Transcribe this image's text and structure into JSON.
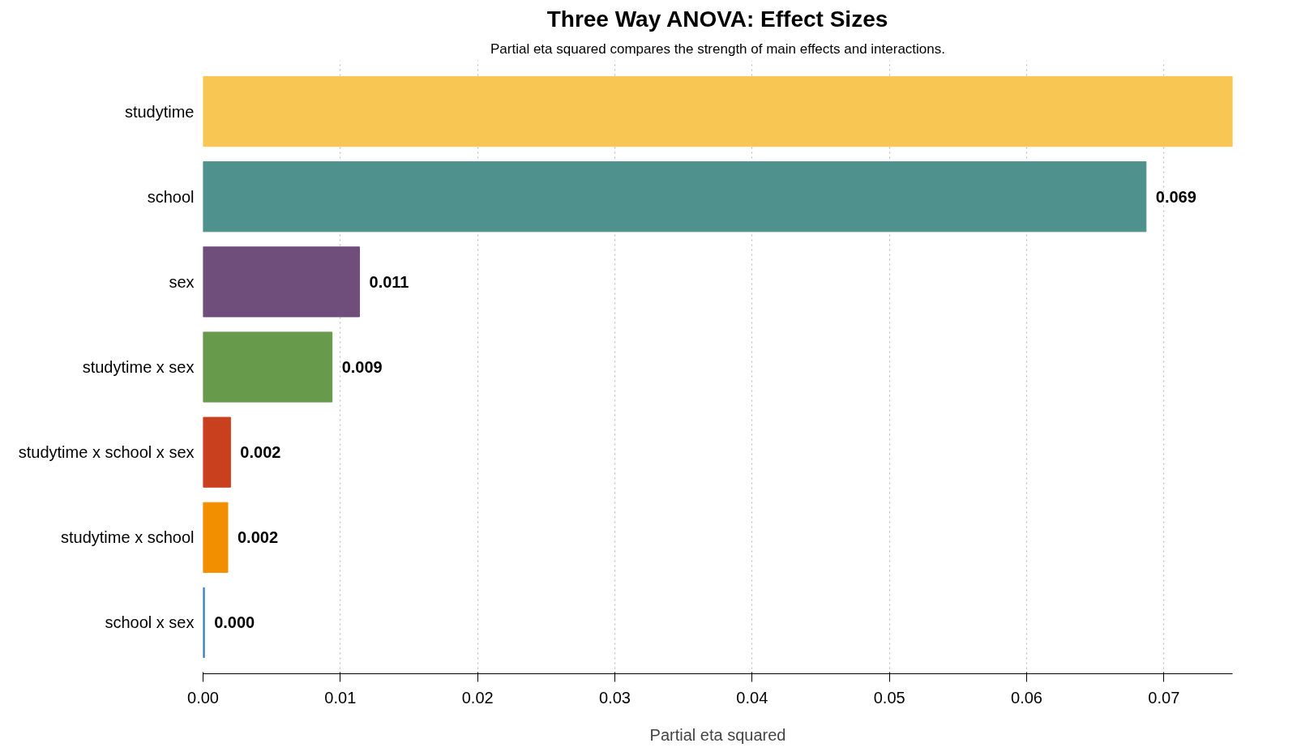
{
  "chart_data": {
    "type": "bar",
    "orientation": "horizontal",
    "title": "Three Way ANOVA: Effect Sizes",
    "subtitle": "Partial eta squared compares the strength of main effects and interactions.",
    "xlabel": "Partial eta squared",
    "categories": [
      "studytime",
      "school",
      "sex",
      "studytime x sex",
      "studytime x school x sex",
      "studytime x school",
      "school x sex"
    ],
    "values": [
      0.075,
      0.0687,
      0.0114,
      0.0094,
      0.002,
      0.0018,
      0.0001
    ],
    "colors": [
      "#f8c753",
      "#4f918d",
      "#6f4e7c",
      "#679a4b",
      "#c9401e",
      "#f18f01",
      "#3a86b5"
    ],
    "value_labels": [
      null,
      "0.069",
      "0.011",
      "0.009",
      "0.002",
      "0.002",
      "0.000"
    ],
    "xlim": [
      0,
      0.075
    ],
    "xticks": [
      {
        "value": 0,
        "label": "0.00"
      },
      {
        "value": 0.01,
        "label": "0.01"
      },
      {
        "value": 0.02,
        "label": "0.02"
      },
      {
        "value": 0.03,
        "label": "0.03"
      },
      {
        "value": 0.04,
        "label": "0.04"
      },
      {
        "value": 0.05,
        "label": "0.05"
      },
      {
        "value": 0.06,
        "label": "0.06"
      },
      {
        "value": 0.07,
        "label": "0.07"
      }
    ],
    "grid": "x"
  }
}
